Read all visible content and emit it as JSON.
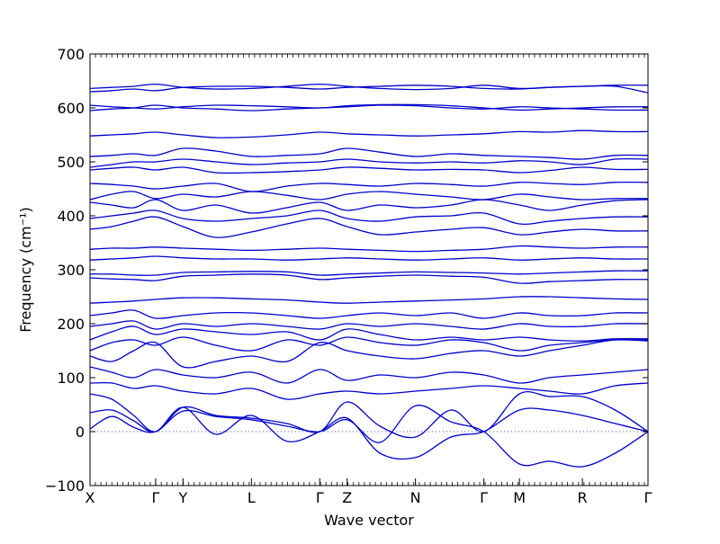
{
  "chart_data": {
    "type": "line",
    "title": "",
    "xlabel": "Wave vector",
    "ylabel": "Frequency (cm⁻¹)",
    "ylim": [
      -100,
      700
    ],
    "yticks": [
      -100,
      0,
      100,
      200,
      300,
      400,
      500,
      600,
      700
    ],
    "xlim": [
      0,
      10.2
    ],
    "grid": false,
    "legend": "none",
    "line_color": "#0000cc",
    "zero_line_color": "#4a4ac8",
    "high_symmetry_points": [
      {
        "label": "X",
        "x": 0.0
      },
      {
        "label": "Γ",
        "x": 1.2
      },
      {
        "label": "Y",
        "x": 1.7
      },
      {
        "label": "L",
        "x": 2.95
      },
      {
        "label": "Γ",
        "x": 4.2
      },
      {
        "label": "Z",
        "x": 4.7
      },
      {
        "label": "N",
        "x": 5.95
      },
      {
        "label": "Γ",
        "x": 7.2
      },
      {
        "label": "M",
        "x": 7.85
      },
      {
        "label": "R",
        "x": 9.0
      },
      {
        "label": "Γ",
        "x": 10.2
      }
    ],
    "series": [
      {
        "x": [
          0,
          0.4,
          0.8,
          1.2,
          1.7,
          2.3,
          2.95,
          3.6,
          4.2,
          4.7,
          5.3,
          5.95,
          6.6,
          7.2,
          7.85,
          8.4,
          9.0,
          9.6,
          10.2
        ],
        "values": [
          5,
          28,
          8,
          0,
          38,
          28,
          22,
          10,
          0,
          22,
          -20,
          48,
          18,
          0,
          -60,
          -55,
          -65,
          -40,
          0
        ]
      },
      {
        "x": [
          0,
          0.4,
          0.8,
          1.2,
          1.7,
          2.3,
          2.95,
          3.6,
          4.2,
          4.7,
          5.3,
          5.95,
          6.6,
          7.2,
          7.85,
          8.4,
          9.0,
          9.6,
          10.2
        ],
        "values": [
          35,
          40,
          20,
          0,
          45,
          -5,
          30,
          -18,
          0,
          25,
          -40,
          -48,
          -10,
          0,
          40,
          40,
          30,
          15,
          0
        ]
      },
      {
        "x": [
          0,
          0.4,
          0.8,
          1.2,
          1.7,
          2.3,
          2.95,
          3.6,
          4.2,
          4.7,
          5.3,
          5.95,
          6.6,
          7.2,
          7.85,
          8.4,
          9.0,
          9.6,
          10.2
        ],
        "values": [
          70,
          60,
          30,
          0,
          45,
          30,
          25,
          15,
          0,
          55,
          10,
          -10,
          40,
          0,
          70,
          65,
          65,
          40,
          0
        ]
      },
      {
        "x": [
          0,
          0.4,
          0.8,
          1.2,
          1.7,
          2.3,
          2.95,
          3.6,
          4.2,
          4.7,
          5.3,
          5.95,
          6.6,
          7.2,
          7.85,
          8.4,
          9.0,
          9.6,
          10.2
        ],
        "values": [
          90,
          90,
          80,
          85,
          75,
          70,
          80,
          60,
          70,
          75,
          70,
          75,
          80,
          85,
          80,
          75,
          70,
          85,
          90
        ]
      },
      {
        "x": [
          0,
          0.4,
          0.8,
          1.2,
          1.7,
          2.3,
          2.95,
          3.6,
          4.2,
          4.7,
          5.3,
          5.95,
          6.6,
          7.2,
          7.85,
          8.4,
          9.0,
          9.6,
          10.2
        ],
        "values": [
          120,
          110,
          100,
          115,
          105,
          100,
          110,
          90,
          115,
          95,
          105,
          100,
          110,
          105,
          90,
          100,
          105,
          110,
          115
        ]
      },
      {
        "x": [
          0,
          0.4,
          0.8,
          1.2,
          1.7,
          2.3,
          2.95,
          3.6,
          4.2,
          4.7,
          5.3,
          5.95,
          6.6,
          7.2,
          7.85,
          8.4,
          9.0,
          9.6,
          10.2
        ],
        "values": [
          140,
          130,
          150,
          165,
          120,
          130,
          140,
          130,
          165,
          150,
          140,
          135,
          145,
          150,
          140,
          150,
          160,
          170,
          168
        ]
      },
      {
        "x": [
          0,
          0.4,
          0.8,
          1.2,
          1.7,
          2.3,
          2.95,
          3.6,
          4.2,
          4.7,
          5.3,
          5.95,
          6.6,
          7.2,
          7.85,
          8.4,
          9.0,
          9.6,
          10.2
        ],
        "values": [
          150,
          165,
          170,
          160,
          175,
          160,
          150,
          170,
          160,
          175,
          165,
          160,
          170,
          165,
          150,
          160,
          165,
          170,
          170
        ]
      },
      {
        "x": [
          0,
          0.4,
          0.8,
          1.2,
          1.7,
          2.3,
          2.95,
          3.6,
          4.2,
          4.7,
          5.3,
          5.95,
          6.6,
          7.2,
          7.85,
          8.4,
          9.0,
          9.6,
          10.2
        ],
        "values": [
          170,
          185,
          195,
          180,
          190,
          185,
          180,
          185,
          170,
          190,
          180,
          170,
          175,
          170,
          175,
          170,
          168,
          172,
          172
        ]
      },
      {
        "x": [
          0,
          0.4,
          0.8,
          1.2,
          1.7,
          2.3,
          2.95,
          3.6,
          4.2,
          4.7,
          5.3,
          5.95,
          6.6,
          7.2,
          7.85,
          8.4,
          9.0,
          9.6,
          10.2
        ],
        "values": [
          195,
          200,
          205,
          190,
          200,
          195,
          200,
          195,
          190,
          200,
          195,
          200,
          195,
          190,
          200,
          195,
          195,
          200,
          200
        ]
      },
      {
        "x": [
          0,
          0.4,
          0.8,
          1.2,
          1.7,
          2.3,
          2.95,
          3.6,
          4.2,
          4.7,
          5.3,
          5.95,
          6.6,
          7.2,
          7.85,
          8.4,
          9.0,
          9.6,
          10.2
        ],
        "values": [
          215,
          220,
          225,
          210,
          215,
          220,
          220,
          215,
          210,
          215,
          220,
          215,
          220,
          210,
          220,
          215,
          215,
          220,
          220
        ]
      },
      {
        "x": [
          0,
          0.4,
          0.8,
          1.2,
          1.7,
          2.3,
          2.95,
          3.6,
          4.2,
          4.7,
          5.3,
          5.95,
          6.6,
          7.2,
          7.85,
          8.4,
          9.0,
          9.6,
          10.2
        ],
        "values": [
          238,
          240,
          242,
          245,
          248,
          248,
          246,
          244,
          240,
          238,
          240,
          242,
          244,
          246,
          250,
          250,
          248,
          246,
          245
        ]
      },
      {
        "x": [
          0,
          0.4,
          0.8,
          1.2,
          1.7,
          2.3,
          2.95,
          3.6,
          4.2,
          4.7,
          5.3,
          5.95,
          6.6,
          7.2,
          7.85,
          8.4,
          9.0,
          9.6,
          10.2
        ],
        "values": [
          285,
          283,
          282,
          280,
          288,
          290,
          292,
          290,
          282,
          285,
          288,
          290,
          288,
          286,
          275,
          278,
          280,
          282,
          282
        ]
      },
      {
        "x": [
          0,
          0.4,
          0.8,
          1.2,
          1.7,
          2.3,
          2.95,
          3.6,
          4.2,
          4.7,
          5.3,
          5.95,
          6.6,
          7.2,
          7.85,
          8.4,
          9.0,
          9.6,
          10.2
        ],
        "values": [
          292,
          292,
          290,
          290,
          295,
          296,
          297,
          296,
          290,
          292,
          294,
          296,
          295,
          294,
          292,
          294,
          296,
          298,
          298
        ]
      },
      {
        "x": [
          0,
          0.4,
          0.8,
          1.2,
          1.7,
          2.3,
          2.95,
          3.6,
          4.2,
          4.7,
          5.3,
          5.95,
          6.6,
          7.2,
          7.85,
          8.4,
          9.0,
          9.6,
          10.2
        ],
        "values": [
          318,
          320,
          322,
          325,
          322,
          320,
          320,
          318,
          320,
          322,
          320,
          318,
          320,
          322,
          318,
          320,
          322,
          320,
          320
        ]
      },
      {
        "x": [
          0,
          0.4,
          0.8,
          1.2,
          1.7,
          2.3,
          2.95,
          3.6,
          4.2,
          4.7,
          5.3,
          5.95,
          6.6,
          7.2,
          7.85,
          8.4,
          9.0,
          9.6,
          10.2
        ],
        "values": [
          338,
          340,
          340,
          342,
          340,
          338,
          336,
          338,
          340,
          338,
          336,
          334,
          336,
          338,
          344,
          342,
          340,
          342,
          342
        ]
      },
      {
        "x": [
          0,
          0.4,
          0.8,
          1.2,
          1.7,
          2.3,
          2.95,
          3.6,
          4.2,
          4.7,
          5.3,
          5.95,
          6.6,
          7.2,
          7.85,
          8.4,
          9.0,
          9.6,
          10.2
        ],
        "values": [
          375,
          380,
          390,
          398,
          380,
          360,
          370,
          385,
          395,
          380,
          365,
          370,
          375,
          378,
          365,
          370,
          375,
          372,
          372
        ]
      },
      {
        "x": [
          0,
          0.4,
          0.8,
          1.2,
          1.7,
          2.3,
          2.95,
          3.6,
          4.2,
          4.7,
          5.3,
          5.95,
          6.6,
          7.2,
          7.85,
          8.4,
          9.0,
          9.6,
          10.2
        ],
        "values": [
          395,
          400,
          405,
          410,
          395,
          390,
          395,
          400,
          410,
          395,
          390,
          398,
          400,
          405,
          385,
          390,
          395,
          398,
          398
        ]
      },
      {
        "x": [
          0,
          0.4,
          0.8,
          1.2,
          1.7,
          2.3,
          2.95,
          3.6,
          4.2,
          4.7,
          5.3,
          5.95,
          6.6,
          7.2,
          7.85,
          8.4,
          9.0,
          9.6,
          10.2
        ],
        "values": [
          425,
          420,
          415,
          430,
          410,
          420,
          405,
          415,
          425,
          410,
          420,
          415,
          420,
          430,
          420,
          410,
          420,
          428,
          430
        ]
      },
      {
        "x": [
          0,
          0.4,
          0.8,
          1.2,
          1.7,
          2.3,
          2.95,
          3.6,
          4.2,
          4.7,
          5.3,
          5.95,
          6.6,
          7.2,
          7.85,
          8.4,
          9.0,
          9.6,
          10.2
        ],
        "values": [
          430,
          440,
          445,
          432,
          440,
          435,
          445,
          438,
          430,
          440,
          445,
          440,
          435,
          430,
          440,
          435,
          430,
          432,
          432
        ]
      },
      {
        "x": [
          0,
          0.4,
          0.8,
          1.2,
          1.7,
          2.3,
          2.95,
          3.6,
          4.2,
          4.7,
          5.3,
          5.95,
          6.6,
          7.2,
          7.85,
          8.4,
          9.0,
          9.6,
          10.2
        ],
        "values": [
          460,
          458,
          455,
          450,
          455,
          460,
          445,
          455,
          460,
          458,
          455,
          460,
          458,
          455,
          462,
          460,
          458,
          462,
          462
        ]
      },
      {
        "x": [
          0,
          0.4,
          0.8,
          1.2,
          1.7,
          2.3,
          2.95,
          3.6,
          4.2,
          4.7,
          5.3,
          5.95,
          6.6,
          7.2,
          7.85,
          8.4,
          9.0,
          9.6,
          10.2
        ],
        "values": [
          485,
          488,
          490,
          485,
          490,
          480,
          480,
          482,
          485,
          490,
          488,
          485,
          486,
          485,
          480,
          484,
          490,
          486,
          486
        ]
      },
      {
        "x": [
          0,
          0.4,
          0.8,
          1.2,
          1.7,
          2.3,
          2.95,
          3.6,
          4.2,
          4.7,
          5.3,
          5.95,
          6.6,
          7.2,
          7.85,
          8.4,
          9.0,
          9.6,
          10.2
        ],
        "values": [
          490,
          495,
          500,
          500,
          505,
          500,
          495,
          498,
          500,
          505,
          500,
          498,
          500,
          498,
          502,
          500,
          495,
          505,
          505
        ]
      },
      {
        "x": [
          0,
          0.4,
          0.8,
          1.2,
          1.7,
          2.3,
          2.95,
          3.6,
          4.2,
          4.7,
          5.3,
          5.95,
          6.6,
          7.2,
          7.85,
          8.4,
          9.0,
          9.6,
          10.2
        ],
        "values": [
          510,
          512,
          515,
          512,
          525,
          520,
          510,
          512,
          515,
          525,
          518,
          510,
          515,
          512,
          510,
          508,
          505,
          512,
          512
        ]
      },
      {
        "x": [
          0,
          0.4,
          0.8,
          1.2,
          1.7,
          2.3,
          2.95,
          3.6,
          4.2,
          4.7,
          5.3,
          5.95,
          6.6,
          7.2,
          7.85,
          8.4,
          9.0,
          9.6,
          10.2
        ],
        "values": [
          548,
          550,
          552,
          555,
          550,
          545,
          546,
          550,
          555,
          552,
          550,
          548,
          550,
          552,
          556,
          555,
          558,
          556,
          556
        ]
      },
      {
        "x": [
          0,
          0.4,
          0.8,
          1.2,
          1.7,
          2.3,
          2.95,
          3.6,
          4.2,
          4.7,
          5.3,
          5.95,
          6.6,
          7.2,
          7.85,
          8.4,
          9.0,
          9.6,
          10.2
        ],
        "values": [
          595,
          598,
          600,
          605,
          600,
          598,
          595,
          598,
          600,
          602,
          605,
          604,
          600,
          598,
          602,
          600,
          598,
          596,
          596
        ]
      },
      {
        "x": [
          0,
          0.4,
          0.8,
          1.2,
          1.7,
          2.3,
          2.95,
          3.6,
          4.2,
          4.7,
          5.3,
          5.95,
          6.6,
          7.2,
          7.85,
          8.4,
          9.0,
          9.6,
          10.2
        ],
        "values": [
          605,
          602,
          600,
          598,
          602,
          605,
          604,
          602,
          600,
          604,
          606,
          606,
          604,
          600,
          596,
          598,
          600,
          602,
          602
        ]
      },
      {
        "x": [
          0,
          0.4,
          0.8,
          1.2,
          1.7,
          2.3,
          2.95,
          3.6,
          4.2,
          4.7,
          5.3,
          5.95,
          6.6,
          7.2,
          7.85,
          8.4,
          9.0,
          9.6,
          10.2
        ],
        "values": [
          630,
          632,
          635,
          632,
          638,
          640,
          640,
          638,
          635,
          638,
          640,
          642,
          640,
          636,
          635,
          638,
          640,
          640,
          628
        ]
      },
      {
        "x": [
          0,
          0.4,
          0.8,
          1.2,
          1.7,
          2.3,
          2.95,
          3.6,
          4.2,
          4.7,
          5.3,
          5.95,
          6.6,
          7.2,
          7.85,
          8.4,
          9.0,
          9.6,
          10.2
        ],
        "values": [
          636,
          638,
          640,
          644,
          638,
          635,
          636,
          640,
          644,
          640,
          636,
          634,
          636,
          642,
          636,
          638,
          640,
          642,
          642
        ]
      }
    ]
  }
}
